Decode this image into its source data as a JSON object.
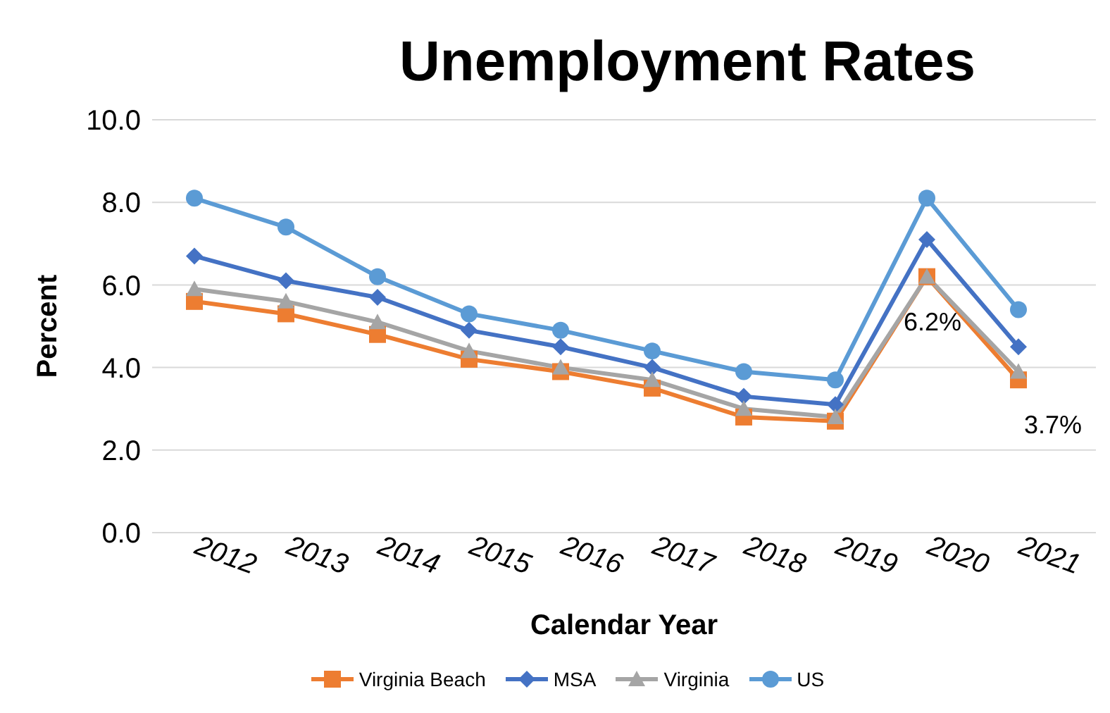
{
  "chart_data": {
    "type": "line",
    "title": "Unemployment Rates",
    "xlabel": "Calendar Year",
    "ylabel": "Percent",
    "categories": [
      "2012",
      "2013",
      "2014",
      "2015",
      "2016",
      "2017",
      "2018",
      "2019",
      "2020",
      "2021"
    ],
    "ylim": [
      0,
      10
    ],
    "yticks": [
      {
        "value": 0,
        "label": "0.0"
      },
      {
        "value": 2,
        "label": "2.0"
      },
      {
        "value": 4,
        "label": "4.0"
      },
      {
        "value": 6,
        "label": "6.0"
      },
      {
        "value": 8,
        "label": "8.0"
      },
      {
        "value": 10,
        "label": "10.0"
      }
    ],
    "grid": "y",
    "legend": "bottom",
    "line_style": "solid",
    "series": [
      {
        "name": "Virginia Beach",
        "color": "#ed7d31",
        "marker": "square",
        "values": [
          5.6,
          5.3,
          4.8,
          4.2,
          3.9,
          3.5,
          2.8,
          2.7,
          6.2,
          3.7
        ],
        "value_labels": [
          null,
          null,
          null,
          null,
          null,
          null,
          null,
          null,
          "6.2%",
          "3.7%"
        ]
      },
      {
        "name": "MSA",
        "color": "#4472c4",
        "marker": "diamond",
        "values": [
          6.7,
          6.1,
          5.7,
          4.9,
          4.5,
          4.0,
          3.3,
          3.1,
          7.1,
          4.5
        ]
      },
      {
        "name": "Virginia",
        "color": "#a5a5a5",
        "marker": "triangle",
        "values": [
          5.9,
          5.6,
          5.1,
          4.4,
          4.0,
          3.7,
          3.0,
          2.8,
          6.2,
          3.9
        ]
      },
      {
        "name": "US",
        "color": "#5b9bd5",
        "marker": "circle",
        "values": [
          8.1,
          7.4,
          6.2,
          5.3,
          4.9,
          4.4,
          3.9,
          3.7,
          8.1,
          5.4
        ]
      }
    ]
  }
}
